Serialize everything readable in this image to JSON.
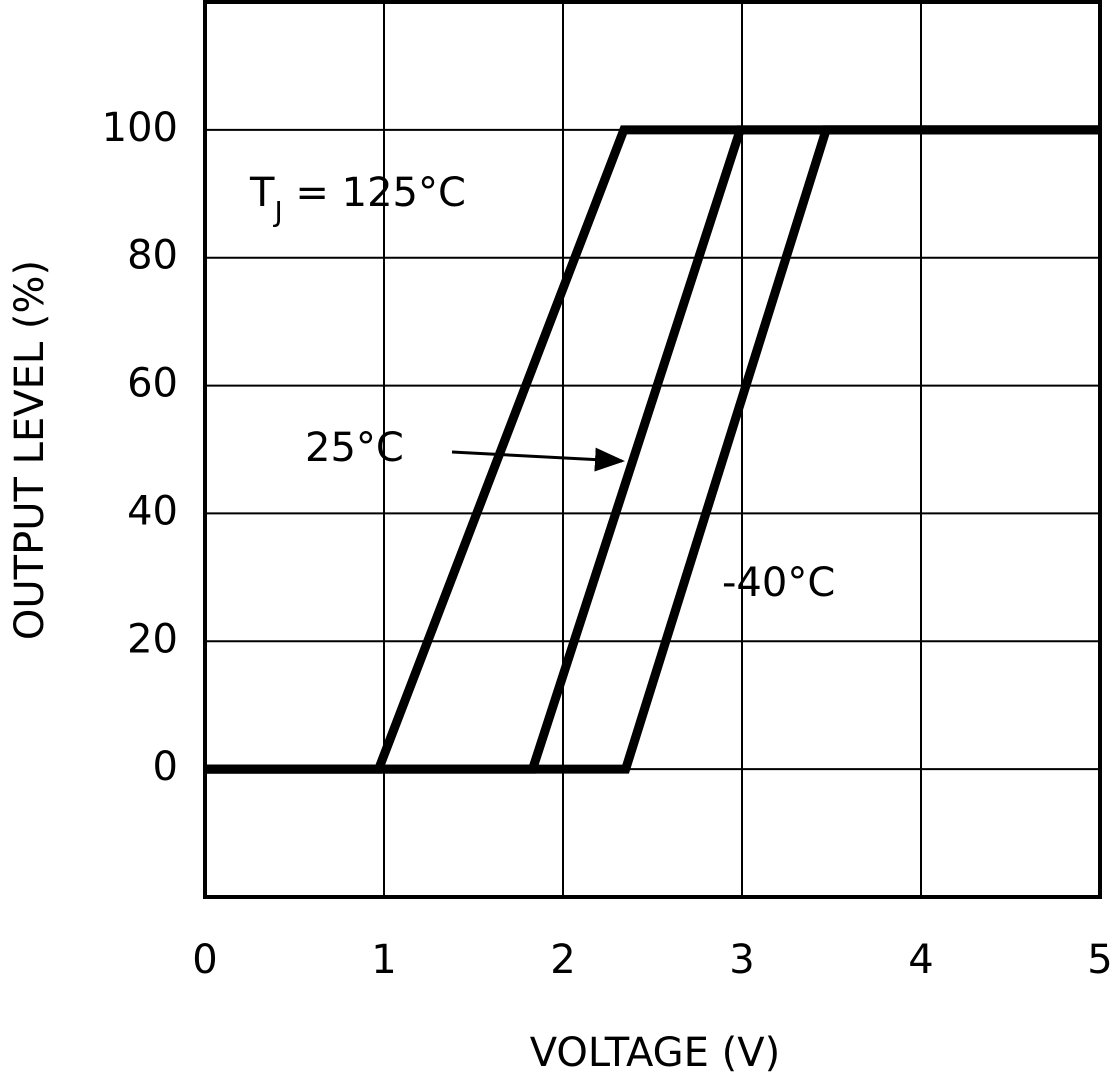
{
  "chart_data": {
    "type": "line",
    "xlabel": "VOLTAGE (V)",
    "ylabel": "OUTPUT LEVEL (%)",
    "xlim": [
      0,
      5
    ],
    "xticks": [
      0,
      1,
      2,
      3,
      4,
      5
    ],
    "ylim": [
      -20,
      120
    ],
    "yticks": [
      0,
      20,
      40,
      60,
      80,
      100
    ],
    "grid": true,
    "annotation": {
      "prefix": "T",
      "subscript": "J",
      "equals": " = "
    },
    "series": [
      {
        "name": "125°C",
        "color": "#000000",
        "x": [
          0,
          0.97,
          2.34,
          5
        ],
        "values": [
          0,
          0,
          100,
          100
        ]
      },
      {
        "name": "25°C",
        "color": "#000000",
        "x": [
          0,
          1.83,
          2.99,
          5
        ],
        "values": [
          0,
          0,
          100,
          100
        ]
      },
      {
        "name": "-40°C",
        "color": "#000000",
        "x": [
          0,
          2.35,
          3.47,
          5
        ],
        "values": [
          0,
          0,
          100,
          100
        ]
      }
    ]
  }
}
